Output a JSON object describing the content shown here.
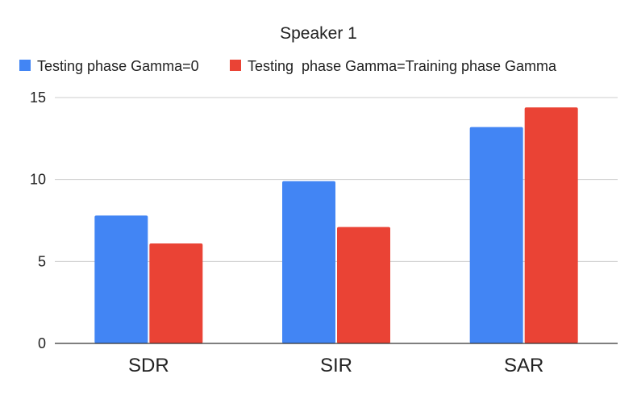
{
  "chart_data": {
    "type": "bar",
    "title": "Speaker 1",
    "xlabel": "",
    "ylabel": "",
    "categories": [
      "SDR",
      "SIR",
      "SAR"
    ],
    "series": [
      {
        "name": "Testing phase Gamma=0",
        "color": "#4285f4",
        "values": [
          7.8,
          9.9,
          13.2
        ]
      },
      {
        "name": "Testing  phase Gamma=Training phase Gamma",
        "color": "#ea4335",
        "values": [
          6.1,
          7.1,
          14.4
        ]
      }
    ],
    "ylim": [
      0,
      15
    ],
    "yticks": [
      0,
      5,
      10,
      15
    ],
    "grid": true,
    "legend_position": "top-left"
  }
}
